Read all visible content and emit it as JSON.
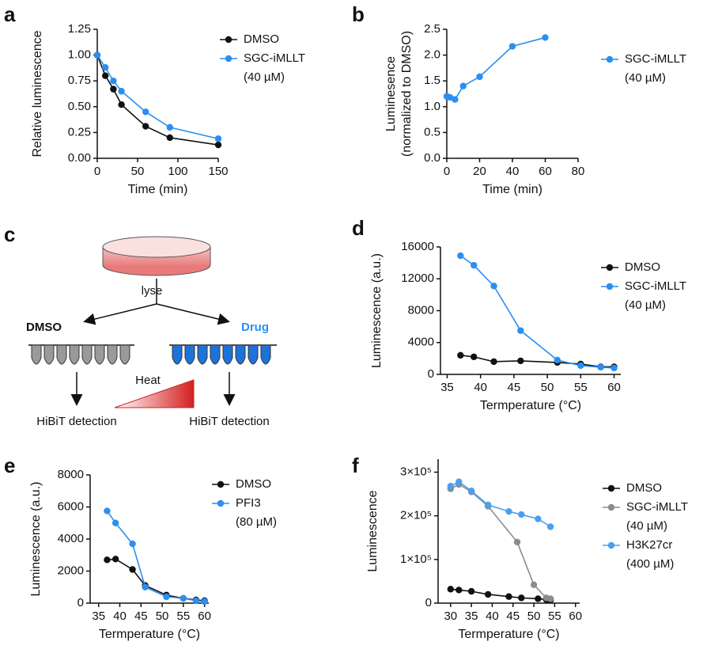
{
  "panels": [
    "a",
    "b",
    "c",
    "d",
    "e",
    "f"
  ],
  "diagram": {
    "lyse": "lyse",
    "left": "DMSO",
    "right": "Drug",
    "heat": "Heat",
    "left_out": "HiBiT detection",
    "right_out": "HiBiT detection"
  },
  "chart_data": [
    {
      "type": "line",
      "xlabel": "Time (min)",
      "ylabel": [
        "Relative luminescence"
      ],
      "xlim": [
        0,
        150
      ],
      "ylim": [
        0,
        1.25
      ],
      "xticks": [
        0,
        50,
        100,
        150
      ],
      "yticks": [
        {
          "value": 0,
          "label": "0.00"
        },
        {
          "value": 0.25,
          "label": "0.25"
        },
        {
          "value": 0.5,
          "label": "0.50"
        },
        {
          "value": 0.75,
          "label": "0.75"
        },
        {
          "value": 1,
          "label": "1.00"
        },
        {
          "value": 1.25,
          "label": "1.25"
        }
      ],
      "series": [
        {
          "name": "DMSO",
          "color": "#111111",
          "x": [
            0,
            10,
            20,
            30,
            60,
            90,
            150
          ],
          "values": [
            1.0,
            0.8,
            0.67,
            0.52,
            0.31,
            0.2,
            0.13
          ]
        },
        {
          "name": "SGC-iMLLT",
          "note": "(40 µM)",
          "color": "#2b8ef0",
          "x": [
            0,
            10,
            20,
            30,
            60,
            90,
            150
          ],
          "values": [
            1.0,
            0.88,
            0.75,
            0.65,
            0.45,
            0.3,
            0.19
          ]
        }
      ]
    },
    {
      "type": "line",
      "xlabel": "Time (min)",
      "ylabel": [
        "Luminesence",
        "(normalized to DMSO)"
      ],
      "xlim": [
        0,
        80
      ],
      "ylim": [
        0,
        2.5
      ],
      "xticks": [
        0,
        20,
        40,
        60,
        80
      ],
      "yticks": [
        {
          "value": 0,
          "label": "0.0"
        },
        {
          "value": 0.5,
          "label": "0.5"
        },
        {
          "value": 1,
          "label": "1.0"
        },
        {
          "value": 1.5,
          "label": "1.5"
        },
        {
          "value": 2,
          "label": "2.0"
        },
        {
          "value": 2.5,
          "label": "2.5"
        }
      ],
      "series": [
        {
          "name": "SGC-iMLLT",
          "note": "(40 µM)",
          "color": "#2b8ef0",
          "x": [
            0,
            2,
            5,
            10,
            20,
            40,
            60
          ],
          "values": [
            1.2,
            1.18,
            1.14,
            1.4,
            1.58,
            2.17,
            2.34
          ]
        }
      ]
    },
    {
      "type": "line",
      "xlabel": "Termperature (°C)",
      "ylabel": [
        "Luminescence (a.u.)"
      ],
      "xlim": [
        34,
        61
      ],
      "ylim": [
        0,
        16000
      ],
      "xticks": [
        35,
        40,
        45,
        50,
        55,
        60
      ],
      "yticks": [
        0,
        4000,
        8000,
        12000,
        16000
      ],
      "series": [
        {
          "name": "DMSO",
          "color": "#111111",
          "x": [
            37,
            39,
            42,
            46,
            51.5,
            55,
            58,
            60
          ],
          "values": [
            2400,
            2200,
            1600,
            1700,
            1500,
            1300,
            950,
            950
          ]
        },
        {
          "name": "SGC-iMLLT",
          "note": "(40 µM)",
          "color": "#2b8ef0",
          "x": [
            37,
            39,
            42,
            46,
            51.5,
            55,
            58,
            60
          ],
          "values": [
            14900,
            13700,
            11100,
            5500,
            1800,
            1100,
            900,
            800
          ]
        }
      ]
    },
    {
      "type": "line",
      "xlabel": "Termperature (°C)",
      "ylabel": [
        "Luminescence  (a.u.)"
      ],
      "xlim": [
        33,
        61
      ],
      "ylim": [
        0,
        8000
      ],
      "xticks": [
        35,
        40,
        45,
        50,
        55,
        60
      ],
      "yticks": [
        0,
        2000,
        4000,
        6000,
        8000
      ],
      "series": [
        {
          "name": "DMSO",
          "color": "#111111",
          "x": [
            37,
            39,
            43,
            46,
            51,
            55,
            58,
            60
          ],
          "values": [
            2700,
            2750,
            2100,
            1100,
            500,
            300,
            200,
            150
          ]
        },
        {
          "name": "PFI3",
          "note": "(80 µM)",
          "color": "#2b8ef0",
          "x": [
            37,
            39,
            43,
            46,
            51,
            55,
            58,
            60
          ],
          "values": [
            5750,
            5000,
            3700,
            1000,
            400,
            300,
            150,
            100
          ]
        }
      ]
    },
    {
      "type": "line",
      "xlabel": "Termperature (°C)",
      "ylabel": [
        "Luminescence"
      ],
      "xlim": [
        27,
        61
      ],
      "ylim": [
        0,
        330000
      ],
      "xticks": [
        30,
        35,
        40,
        45,
        50,
        55,
        60
      ],
      "yticks": [
        0,
        {
          "value": 100000,
          "label": "1×10⁵"
        },
        {
          "value": 200000,
          "label": "2×10⁵"
        },
        {
          "value": 300000,
          "label": "3×10⁵"
        }
      ],
      "series": [
        {
          "name": "DMSO",
          "color": "#111111",
          "x": [
            30,
            32,
            35,
            39,
            44,
            47,
            51,
            53,
            54
          ],
          "values": [
            32000,
            30000,
            27000,
            20000,
            15000,
            12000,
            10000,
            8000,
            7000
          ]
        },
        {
          "name": "SGC-iMLLT",
          "note": "(40 µM)",
          "color": "#8c8c8c",
          "x": [
            30,
            32,
            35,
            39,
            46,
            50,
            53,
            54
          ],
          "values": [
            262000,
            272000,
            255000,
            222000,
            140000,
            42000,
            12000,
            10000
          ]
        },
        {
          "name": "H3K27cr",
          "note": "(400 µM)",
          "color": "#4aa0ee",
          "x": [
            30,
            32,
            35,
            39,
            44,
            47,
            51,
            54
          ],
          "values": [
            268000,
            278000,
            257000,
            225000,
            210000,
            203000,
            193000,
            175000
          ]
        }
      ]
    }
  ]
}
